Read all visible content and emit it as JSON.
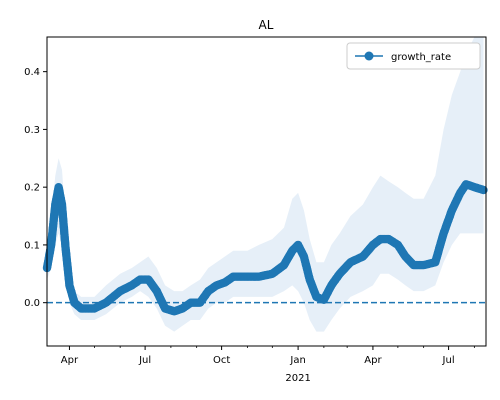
{
  "chart_data": {
    "type": "line",
    "title": "AL",
    "xlabel": "",
    "ylabel": "",
    "x_range": [
      "2020-03-05",
      "2021-08-15"
    ],
    "ylim": [
      -0.075,
      0.46
    ],
    "y_ticks": [
      {
        "value": 0.0,
        "label": "0.0"
      },
      {
        "value": 0.1,
        "label": "0.1"
      },
      {
        "value": 0.2,
        "label": "0.2"
      },
      {
        "value": 0.3,
        "label": "0.3"
      },
      {
        "value": 0.4,
        "label": "0.4"
      }
    ],
    "x_major_ticks": [
      {
        "date": "2020-04-01",
        "label": "Apr"
      },
      {
        "date": "2020-07-01",
        "label": "Jul"
      },
      {
        "date": "2020-10-01",
        "label": "Oct"
      },
      {
        "date": "2021-01-01",
        "label": "Jan"
      },
      {
        "date": "2021-04-01",
        "label": "Apr"
      },
      {
        "date": "2021-07-01",
        "label": "Jul"
      }
    ],
    "x_year_label": {
      "date": "2021-01-01",
      "label": "2021"
    },
    "x_minor_ticks": [
      "2020-05-01",
      "2020-06-01",
      "2020-08-01",
      "2020-09-01",
      "2020-11-01",
      "2020-12-01",
      "2021-02-01",
      "2021-03-01",
      "2021-05-01",
      "2021-06-01",
      "2021-08-01"
    ],
    "reference_line": {
      "y": 0.0,
      "style": "dashed"
    },
    "legend": {
      "location": "top-right",
      "entries": [
        "growth_rate"
      ]
    },
    "series": [
      {
        "name": "growth_rate",
        "color": "#1f77b4",
        "band_color": "#e6eff8",
        "points": [
          {
            "x": "2020-03-05",
            "y": 0.06,
            "lo": 0.04,
            "hi": 0.08
          },
          {
            "x": "2020-03-10",
            "y": 0.1,
            "lo": 0.06,
            "hi": 0.15
          },
          {
            "x": "2020-03-15",
            "y": 0.17,
            "lo": 0.1,
            "hi": 0.22
          },
          {
            "x": "2020-03-19",
            "y": 0.2,
            "lo": 0.12,
            "hi": 0.25
          },
          {
            "x": "2020-03-23",
            "y": 0.17,
            "lo": 0.1,
            "hi": 0.23
          },
          {
            "x": "2020-03-27",
            "y": 0.1,
            "lo": 0.05,
            "hi": 0.15
          },
          {
            "x": "2020-04-01",
            "y": 0.03,
            "lo": 0.0,
            "hi": 0.07
          },
          {
            "x": "2020-04-07",
            "y": 0.0,
            "lo": -0.02,
            "hi": 0.02
          },
          {
            "x": "2020-04-15",
            "y": -0.01,
            "lo": -0.03,
            "hi": 0.01
          },
          {
            "x": "2020-05-01",
            "y": -0.01,
            "lo": -0.03,
            "hi": 0.01
          },
          {
            "x": "2020-05-15",
            "y": 0.0,
            "lo": -0.02,
            "hi": 0.03
          },
          {
            "x": "2020-06-01",
            "y": 0.02,
            "lo": 0.0,
            "hi": 0.05
          },
          {
            "x": "2020-06-15",
            "y": 0.03,
            "lo": 0.01,
            "hi": 0.06
          },
          {
            "x": "2020-06-25",
            "y": 0.04,
            "lo": 0.02,
            "hi": 0.07
          },
          {
            "x": "2020-07-05",
            "y": 0.04,
            "lo": 0.01,
            "hi": 0.08
          },
          {
            "x": "2020-07-15",
            "y": 0.02,
            "lo": -0.01,
            "hi": 0.06
          },
          {
            "x": "2020-07-25",
            "y": -0.01,
            "lo": -0.04,
            "hi": 0.03
          },
          {
            "x": "2020-08-05",
            "y": -0.015,
            "lo": -0.05,
            "hi": 0.02
          },
          {
            "x": "2020-08-15",
            "y": -0.01,
            "lo": -0.04,
            "hi": 0.02
          },
          {
            "x": "2020-08-25",
            "y": 0.0,
            "lo": -0.03,
            "hi": 0.03
          },
          {
            "x": "2020-09-05",
            "y": 0.0,
            "lo": -0.03,
            "hi": 0.04
          },
          {
            "x": "2020-09-15",
            "y": 0.02,
            "lo": -0.01,
            "hi": 0.06
          },
          {
            "x": "2020-09-25",
            "y": 0.03,
            "lo": 0.0,
            "hi": 0.07
          },
          {
            "x": "2020-10-05",
            "y": 0.035,
            "lo": 0.0,
            "hi": 0.08
          },
          {
            "x": "2020-10-15",
            "y": 0.045,
            "lo": 0.01,
            "hi": 0.09
          },
          {
            "x": "2020-11-01",
            "y": 0.045,
            "lo": 0.01,
            "hi": 0.09
          },
          {
            "x": "2020-11-15",
            "y": 0.045,
            "lo": 0.01,
            "hi": 0.1
          },
          {
            "x": "2020-12-01",
            "y": 0.05,
            "lo": 0.01,
            "hi": 0.11
          },
          {
            "x": "2020-12-15",
            "y": 0.065,
            "lo": 0.02,
            "hi": 0.13
          },
          {
            "x": "2020-12-25",
            "y": 0.09,
            "lo": 0.03,
            "hi": 0.18
          },
          {
            "x": "2021-01-01",
            "y": 0.1,
            "lo": 0.02,
            "hi": 0.19
          },
          {
            "x": "2021-01-08",
            "y": 0.08,
            "lo": 0.0,
            "hi": 0.16
          },
          {
            "x": "2021-01-15",
            "y": 0.04,
            "lo": -0.03,
            "hi": 0.11
          },
          {
            "x": "2021-01-23",
            "y": 0.01,
            "lo": -0.05,
            "hi": 0.07
          },
          {
            "x": "2021-02-01",
            "y": 0.005,
            "lo": -0.05,
            "hi": 0.07
          },
          {
            "x": "2021-02-10",
            "y": 0.03,
            "lo": -0.03,
            "hi": 0.1
          },
          {
            "x": "2021-02-20",
            "y": 0.05,
            "lo": -0.01,
            "hi": 0.12
          },
          {
            "x": "2021-03-05",
            "y": 0.07,
            "lo": 0.01,
            "hi": 0.15
          },
          {
            "x": "2021-03-20",
            "y": 0.08,
            "lo": 0.02,
            "hi": 0.17
          },
          {
            "x": "2021-04-01",
            "y": 0.1,
            "lo": 0.03,
            "hi": 0.2
          },
          {
            "x": "2021-04-10",
            "y": 0.11,
            "lo": 0.05,
            "hi": 0.22
          },
          {
            "x": "2021-04-20",
            "y": 0.11,
            "lo": 0.05,
            "hi": 0.21
          },
          {
            "x": "2021-05-01",
            "y": 0.1,
            "lo": 0.04,
            "hi": 0.2
          },
          {
            "x": "2021-05-10",
            "y": 0.08,
            "lo": 0.03,
            "hi": 0.19
          },
          {
            "x": "2021-05-20",
            "y": 0.065,
            "lo": 0.02,
            "hi": 0.18
          },
          {
            "x": "2021-06-01",
            "y": 0.065,
            "lo": 0.02,
            "hi": 0.18
          },
          {
            "x": "2021-06-15",
            "y": 0.07,
            "lo": 0.03,
            "hi": 0.22
          },
          {
            "x": "2021-06-25",
            "y": 0.12,
            "lo": 0.07,
            "hi": 0.3
          },
          {
            "x": "2021-07-05",
            "y": 0.16,
            "lo": 0.1,
            "hi": 0.36
          },
          {
            "x": "2021-07-15",
            "y": 0.19,
            "lo": 0.12,
            "hi": 0.4
          },
          {
            "x": "2021-07-22",
            "y": 0.205,
            "lo": 0.12,
            "hi": 0.43
          },
          {
            "x": "2021-08-01",
            "y": 0.2,
            "lo": 0.12,
            "hi": 0.46
          },
          {
            "x": "2021-08-12",
            "y": 0.195,
            "lo": 0.12,
            "hi": 0.46
          }
        ]
      }
    ]
  }
}
